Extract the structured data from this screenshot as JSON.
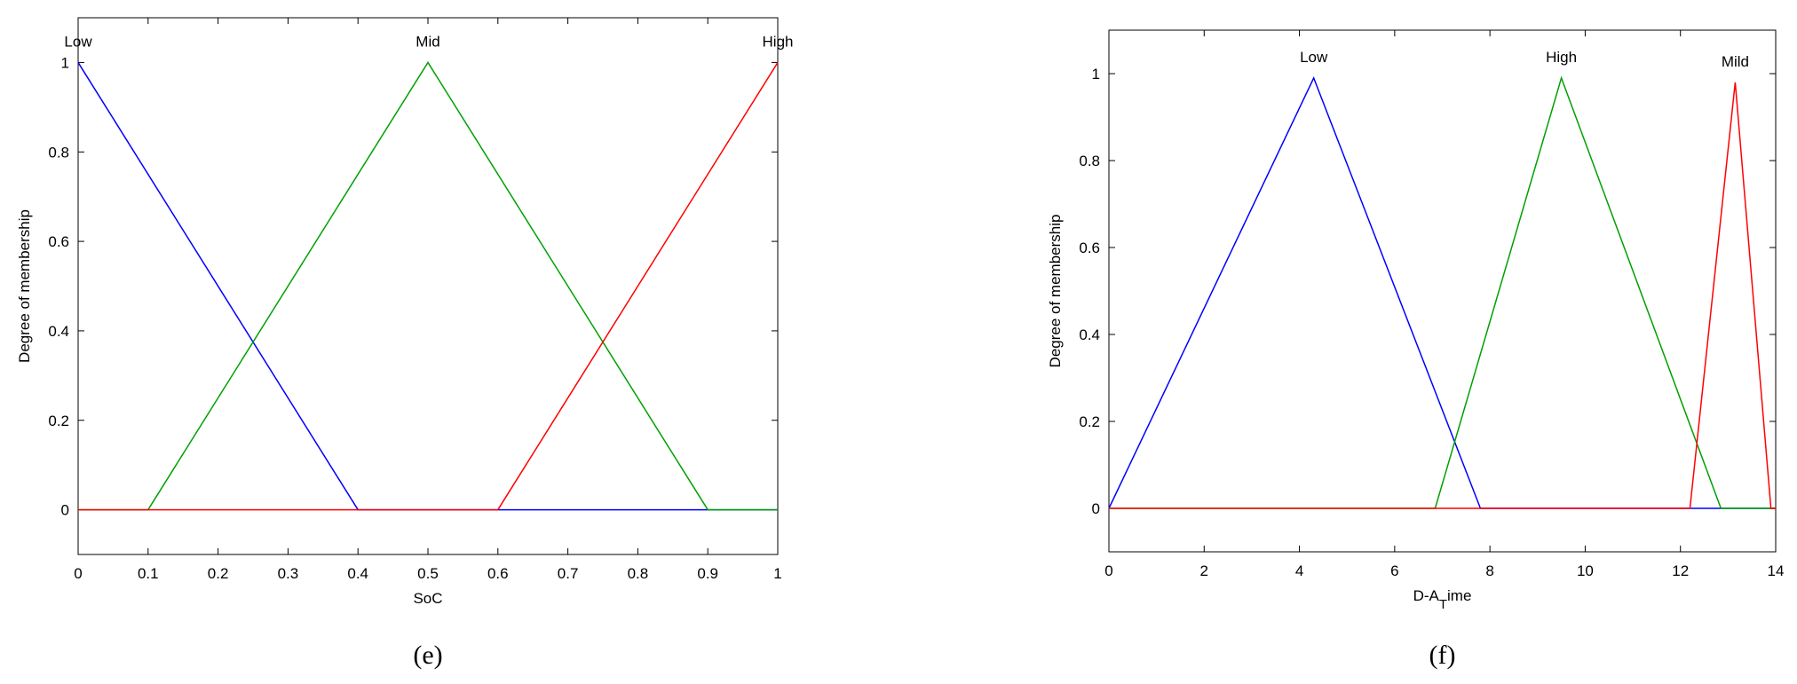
{
  "chart_data": [
    {
      "type": "line",
      "caption": "(e)",
      "x_label": [
        "SoC"
      ],
      "y_label": "Degree of membership",
      "xlim": [
        0,
        1
      ],
      "ylim": [
        -0.1,
        1.1
      ],
      "xticks": [
        0,
        0.1,
        0.2,
        0.3,
        0.4,
        0.5,
        0.6,
        0.7,
        0.8,
        0.9,
        1
      ],
      "yticks": [
        0,
        0.2,
        0.4,
        0.6,
        0.8,
        1
      ],
      "series": [
        {
          "name": "Low",
          "color": "#0000ff",
          "x": [
            0,
            0.4,
            1
          ],
          "values": [
            1,
            0,
            0
          ]
        },
        {
          "name": "Mid",
          "color": "#00a000",
          "x": [
            0,
            0.1,
            0.5,
            0.9,
            1
          ],
          "values": [
            0,
            0,
            1,
            0,
            0
          ]
        },
        {
          "name": "High",
          "color": "#ff0000",
          "x": [
            0,
            0.6,
            1
          ],
          "values": [
            0,
            0,
            1
          ]
        }
      ]
    },
    {
      "type": "line",
      "caption": "(f)",
      "x_label": [
        "D-A",
        "T",
        "ime"
      ],
      "y_label": "Degree of membership",
      "xlim": [
        0,
        14
      ],
      "ylim": [
        -0.1,
        1.1
      ],
      "xticks": [
        0,
        2,
        4,
        6,
        8,
        10,
        12,
        14
      ],
      "yticks": [
        0,
        0.2,
        0.4,
        0.6,
        0.8,
        1
      ],
      "series": [
        {
          "name": "Low",
          "color": "#0000ff",
          "x": [
            0,
            4.3,
            7.8,
            14
          ],
          "values": [
            0,
            0.99,
            0,
            0
          ]
        },
        {
          "name": "High",
          "color": "#00a000",
          "x": [
            0,
            6.85,
            9.5,
            12.85,
            14
          ],
          "values": [
            0,
            0,
            0.99,
            0,
            0
          ]
        },
        {
          "name": "Mild",
          "color": "#ff0000",
          "x": [
            0,
            12.2,
            13.15,
            13.9,
            14
          ],
          "values": [
            0,
            0,
            0.98,
            0,
            0
          ]
        }
      ]
    }
  ]
}
